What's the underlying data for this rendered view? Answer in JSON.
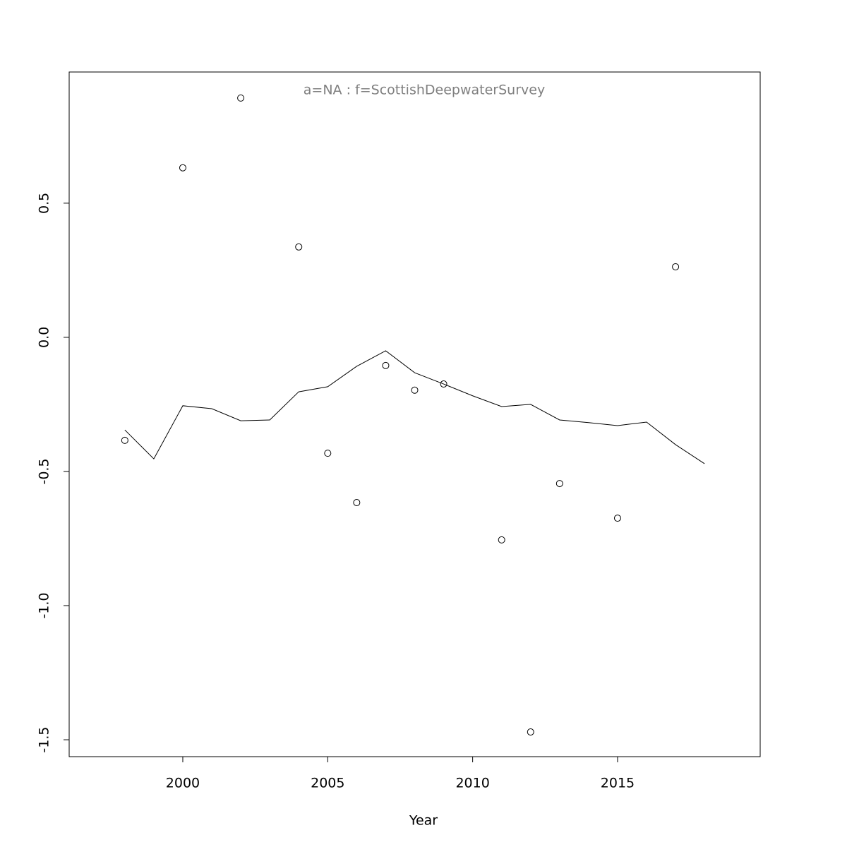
{
  "chart_data": {
    "type": "scatter",
    "title": "a=NA  :  f=ScottishDeepwaterSurvey",
    "x_label": "Year",
    "series": [
      {
        "type": "scatter",
        "color": "#000000",
        "x": [
          1998,
          2000,
          2002,
          2004,
          2005,
          2006,
          2007,
          2008,
          2009,
          2011,
          2012,
          2013,
          2015,
          2017
        ],
        "values": [
          -0.384,
          0.632,
          0.892,
          0.337,
          -0.432,
          -0.616,
          -0.105,
          -0.197,
          -0.174,
          -0.755,
          -1.471,
          -0.545,
          -0.674,
          0.263
        ]
      },
      {
        "type": "line",
        "color": "#000000",
        "x": [
          1998,
          1999,
          2000,
          2001,
          2002,
          2003,
          2004,
          2005,
          2006,
          2007,
          2008,
          2009,
          2010,
          2011,
          2012,
          2013,
          2014,
          2015,
          2016,
          2017,
          2018
        ],
        "values": [
          -0.345,
          -0.453,
          -0.255,
          -0.266,
          -0.311,
          -0.308,
          -0.203,
          -0.184,
          -0.108,
          -0.05,
          -0.132,
          -0.174,
          -0.218,
          -0.258,
          -0.25,
          -0.308,
          -0.318,
          -0.329,
          -0.316,
          -0.4,
          -0.471
        ]
      }
    ],
    "xlim": [
      1996.08,
      2019.92
    ],
    "ylim": [
      -1.563,
      0.989
    ],
    "xticks": [
      2000,
      2005,
      2010,
      2015
    ],
    "yticks": [
      -1.5,
      {
        "value": -1.0,
        "label": "-1.0"
      },
      -0.5,
      {
        "value": 0.0,
        "label": "0.0"
      },
      0.5
    ],
    "grid": false
  }
}
